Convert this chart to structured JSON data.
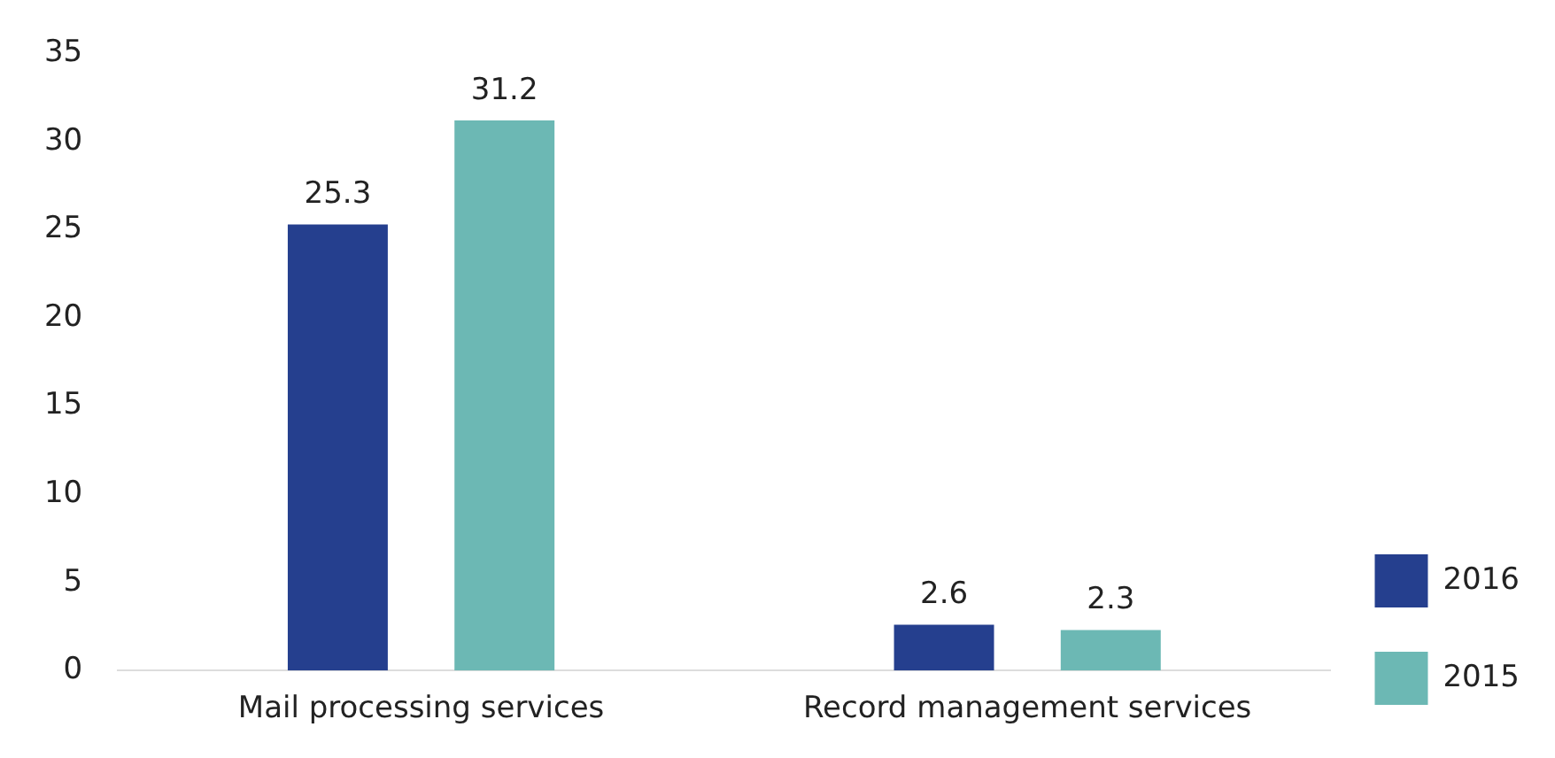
{
  "chart_data": {
    "type": "bar",
    "categories": [
      "Mail processing services",
      "Record management services"
    ],
    "series": [
      {
        "name": "2016",
        "color": "#253f8e",
        "values": [
          25.3,
          2.6
        ]
      },
      {
        "name": "2015",
        "color": "#6cb8b4",
        "values": [
          31.2,
          2.3
        ]
      }
    ],
    "ylim": [
      0,
      35
    ],
    "yticks": [
      0,
      5,
      10,
      15,
      20,
      25,
      30,
      35
    ],
    "grid": false,
    "legend": "right",
    "data_labels": true
  }
}
